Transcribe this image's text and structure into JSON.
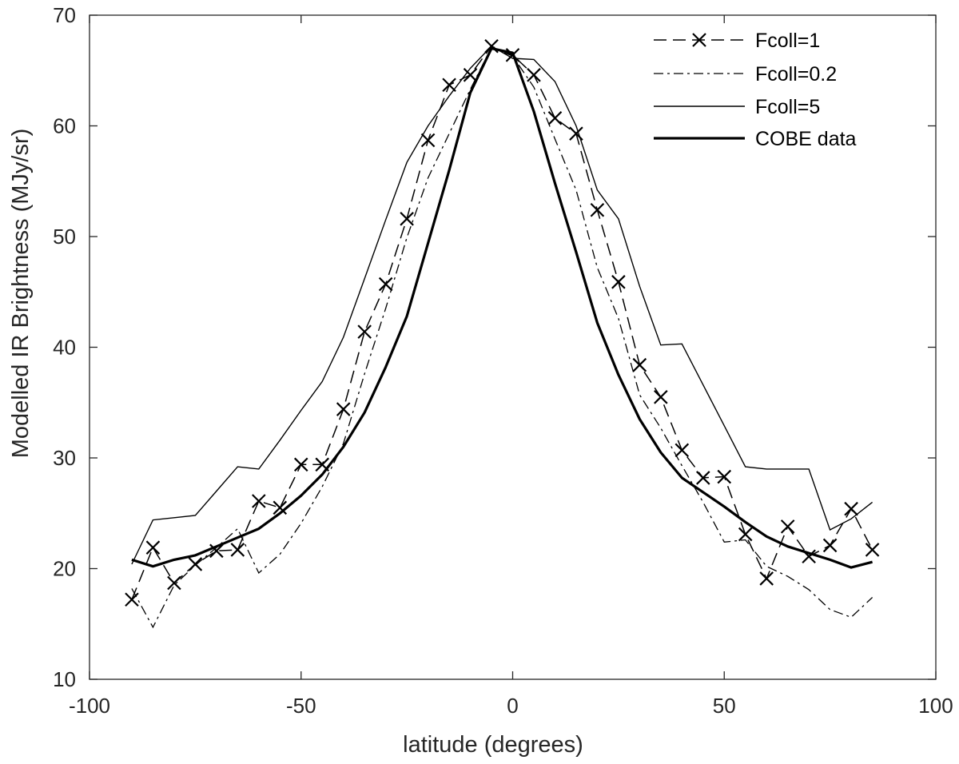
{
  "chart_data": {
    "type": "line",
    "title": "",
    "xlabel": "latitude (degrees)",
    "ylabel": "Modelled IR Brightness (MJy/sr)",
    "xlim": [
      -100,
      100
    ],
    "ylim": [
      10,
      70
    ],
    "xticks": [
      -100,
      -50,
      0,
      50,
      100
    ],
    "yticks": [
      10,
      20,
      30,
      40,
      50,
      60,
      70
    ],
    "xtick_labels": [
      "-100",
      "-50",
      "0",
      "50",
      "100"
    ],
    "ytick_labels": [
      "10",
      "20",
      "30",
      "40",
      "50",
      "60",
      "70"
    ],
    "grid": false,
    "legend_position": "top-right",
    "series": [
      {
        "name": "Fcoll=1",
        "style": "dashed-x",
        "x": [
          -90,
          -85,
          -80,
          -75,
          -70,
          -65,
          -60,
          -55,
          -50,
          -45,
          -40,
          -35,
          -30,
          -25,
          -20,
          -15,
          -10,
          -5,
          0,
          5,
          10,
          15,
          20,
          25,
          30,
          35,
          40,
          45,
          50,
          55,
          60,
          65,
          70,
          75,
          80,
          85
        ],
        "y": [
          17.2,
          21.9,
          18.7,
          20.4,
          21.6,
          21.7,
          26.1,
          25.5,
          29.4,
          29.4,
          34.4,
          41.4,
          45.7,
          51.6,
          58.7,
          63.7,
          64.6,
          67.2,
          66.4,
          64.6,
          60.7,
          59.3,
          52.4,
          45.9,
          38.4,
          35.5,
          30.7,
          28.2,
          28.3,
          23.1,
          19.1,
          23.8,
          21.1,
          22.1,
          25.4,
          21.7
        ]
      },
      {
        "name": "Fcoll=0.2",
        "style": "dashdot",
        "x": [
          -90,
          -85,
          -80,
          -75,
          -70,
          -65,
          -60,
          -55,
          -50,
          -45,
          -40,
          -35,
          -30,
          -25,
          -20,
          -15,
          -10,
          -5,
          0,
          5,
          10,
          15,
          20,
          25,
          30,
          35,
          40,
          45,
          50,
          55,
          60,
          65,
          70,
          75,
          80,
          85
        ],
        "y": [
          18.2,
          14.7,
          18.5,
          20.3,
          21.9,
          23.6,
          19.6,
          21.3,
          24.1,
          27.4,
          31.3,
          37.6,
          43.5,
          49.9,
          55.3,
          59.3,
          63.3,
          67.1,
          66.3,
          63.5,
          58.8,
          54.2,
          47.2,
          42.6,
          35.7,
          32.7,
          29.3,
          26.0,
          22.4,
          22.6,
          20.2,
          19.3,
          18.1,
          16.3,
          15.6,
          17.4
        ]
      },
      {
        "name": "Fcoll=5",
        "style": "thin",
        "x": [
          -90,
          -85,
          -80,
          -75,
          -70,
          -65,
          -60,
          -55,
          -50,
          -45,
          -40,
          -35,
          -30,
          -25,
          -20,
          -15,
          -10,
          -5,
          0,
          5,
          10,
          15,
          20,
          25,
          30,
          35,
          40,
          45,
          50,
          55,
          60,
          65,
          70,
          75,
          80,
          85
        ],
        "y": [
          20.4,
          24.4,
          24.6,
          24.8,
          27.0,
          29.2,
          29.0,
          31.6,
          34.3,
          36.9,
          40.9,
          46.2,
          51.5,
          56.7,
          60.0,
          62.7,
          65.2,
          67.2,
          66.1,
          66.0,
          64.0,
          60.0,
          54.2,
          51.6,
          45.5,
          40.2,
          40.3,
          36.6,
          32.9,
          29.2,
          29.0,
          29.0,
          29.0,
          23.5,
          24.5,
          26.0
        ]
      },
      {
        "name": "COBE data",
        "style": "thick",
        "x": [
          -90,
          -85,
          -80,
          -75,
          -70,
          -65,
          -60,
          -55,
          -50,
          -45,
          -40,
          -35,
          -30,
          -25,
          -20,
          -15,
          -10,
          -5,
          0,
          5,
          10,
          15,
          20,
          25,
          30,
          35,
          40,
          45,
          50,
          55,
          60,
          65,
          70,
          75,
          80,
          85
        ],
        "y": [
          20.8,
          20.2,
          20.8,
          21.2,
          22.0,
          22.8,
          23.6,
          25.0,
          26.6,
          28.5,
          31.0,
          34.1,
          38.2,
          42.8,
          49.4,
          56.0,
          63.0,
          67.0,
          66.6,
          61.3,
          54.8,
          48.6,
          42.2,
          37.5,
          33.5,
          30.5,
          28.2,
          26.9,
          25.6,
          24.2,
          22.9,
          22.0,
          21.4,
          20.8,
          20.1,
          20.6
        ]
      }
    ]
  }
}
